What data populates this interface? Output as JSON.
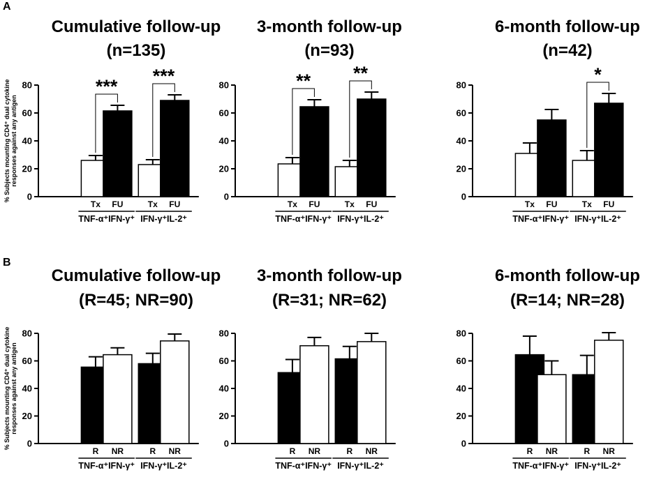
{
  "chart_data": {
    "y_axis_label_line1": "% Subjects mounting CD4⁺ dual cytokine",
    "y_axis_label_line2": "responses against any antigen",
    "row_labels": [
      "A",
      "B"
    ],
    "colors": {
      "filled": "#000000",
      "open": "#ffffff",
      "stroke": "#000000"
    },
    "panels": [
      {
        "row": 0,
        "col": 0,
        "type": "bar",
        "title_line1": "Cumulative follow-up",
        "title_line2": "(n=135)",
        "ylim": [
          0,
          80
        ],
        "yticks": [
          "0",
          "20",
          "40",
          "60",
          "80"
        ],
        "groups": [
          "TNF-α⁺IFN-γ⁺",
          "IFN-γ⁺IL-2⁺"
        ],
        "bars": [
          {
            "label": "Tx",
            "value": 26,
            "error": 3.5,
            "fill": "open"
          },
          {
            "label": "FU",
            "value": 61.5,
            "error": 4,
            "fill": "filled"
          },
          {
            "label": "Tx",
            "value": 23,
            "error": 3.5,
            "fill": "open"
          },
          {
            "label": "FU",
            "value": 69,
            "error": 4,
            "fill": "filled"
          }
        ],
        "significance": [
          {
            "from": 0,
            "to": 1,
            "label": "***"
          },
          {
            "from": 2,
            "to": 3,
            "label": "***"
          }
        ]
      },
      {
        "row": 0,
        "col": 1,
        "type": "bar",
        "title_line1": "3-month follow-up",
        "title_line2": "(n=93)",
        "ylim": [
          0,
          80
        ],
        "yticks": [
          "0",
          "20",
          "40",
          "60",
          "80"
        ],
        "groups": [
          "TNF-α⁺IFN-γ⁺",
          "IFN-γ⁺IL-2⁺"
        ],
        "bars": [
          {
            "label": "Tx",
            "value": 23.5,
            "error": 4.5,
            "fill": "open"
          },
          {
            "label": "FU",
            "value": 64.5,
            "error": 5,
            "fill": "filled"
          },
          {
            "label": "Tx",
            "value": 21.5,
            "error": 4.5,
            "fill": "open"
          },
          {
            "label": "FU",
            "value": 70,
            "error": 5,
            "fill": "filled"
          }
        ],
        "significance": [
          {
            "from": 0,
            "to": 1,
            "label": "**"
          },
          {
            "from": 2,
            "to": 3,
            "label": "**"
          }
        ]
      },
      {
        "row": 0,
        "col": 2,
        "type": "bar",
        "title_line1": "6-month follow-up",
        "title_line2": "(n=42)",
        "ylim": [
          0,
          80
        ],
        "yticks": [
          "0",
          "20",
          "40",
          "60",
          "80"
        ],
        "groups": [
          "TNF-α⁺IFN-γ⁺",
          "IFN-γ⁺IL-2⁺"
        ],
        "bars": [
          {
            "label": "Tx",
            "value": 31,
            "error": 7.5,
            "fill": "open"
          },
          {
            "label": "FU",
            "value": 55,
            "error": 7.5,
            "fill": "filled"
          },
          {
            "label": "Tx",
            "value": 26,
            "error": 7,
            "fill": "open"
          },
          {
            "label": "FU",
            "value": 67,
            "error": 7,
            "fill": "filled"
          }
        ],
        "significance": [
          {
            "from": 2,
            "to": 3,
            "label": "*"
          }
        ]
      },
      {
        "row": 1,
        "col": 0,
        "type": "bar",
        "title_line1": "Cumulative follow-up",
        "title_line2": "(R=45; NR=90)",
        "ylim": [
          0,
          80
        ],
        "yticks": [
          "0",
          "20",
          "40",
          "60",
          "80"
        ],
        "groups": [
          "TNF-α⁺IFN-γ⁺",
          "IFN-γ⁺IL-2⁺"
        ],
        "bars": [
          {
            "label": "R",
            "value": 55.5,
            "error": 7.5,
            "fill": "filled"
          },
          {
            "label": "NR",
            "value": 64.5,
            "error": 5,
            "fill": "open"
          },
          {
            "label": "R",
            "value": 58,
            "error": 7.5,
            "fill": "filled"
          },
          {
            "label": "NR",
            "value": 74.5,
            "error": 5,
            "fill": "open"
          }
        ],
        "significance": []
      },
      {
        "row": 1,
        "col": 1,
        "type": "bar",
        "title_line1": "3-month follow-up",
        "title_line2": "(R=31; NR=62)",
        "ylim": [
          0,
          80
        ],
        "yticks": [
          "0",
          "20",
          "40",
          "60",
          "80"
        ],
        "groups": [
          "TNF-α⁺IFN-γ⁺",
          "IFN-γ⁺IL-2⁺"
        ],
        "bars": [
          {
            "label": "R",
            "value": 51.5,
            "error": 9.5,
            "fill": "filled"
          },
          {
            "label": "NR",
            "value": 71,
            "error": 6,
            "fill": "open"
          },
          {
            "label": "R",
            "value": 61.5,
            "error": 9,
            "fill": "filled"
          },
          {
            "label": "NR",
            "value": 74,
            "error": 6,
            "fill": "open"
          }
        ],
        "significance": []
      },
      {
        "row": 1,
        "col": 2,
        "type": "bar",
        "title_line1": "6-month follow-up",
        "title_line2": "(R=14; NR=28)",
        "ylim": [
          0,
          80
        ],
        "yticks": [
          "0",
          "20",
          "40",
          "60",
          "80"
        ],
        "groups": [
          "TNF-α⁺IFN-γ⁺",
          "IFN-γ⁺IL-2⁺"
        ],
        "bars": [
          {
            "label": "R",
            "value": 64.5,
            "error": 13.5,
            "fill": "filled"
          },
          {
            "label": "NR",
            "value": 50,
            "error": 10,
            "fill": "open"
          },
          {
            "label": "R",
            "value": 50,
            "error": 14,
            "fill": "filled"
          },
          {
            "label": "NR",
            "value": 75,
            "error": 5.5,
            "fill": "open"
          }
        ],
        "significance": []
      }
    ]
  }
}
